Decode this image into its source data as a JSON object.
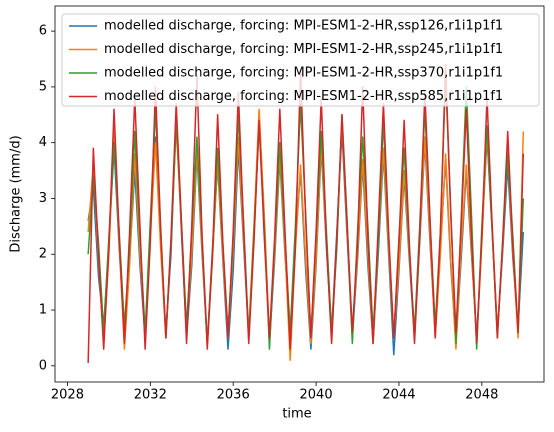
{
  "chart_data": {
    "type": "line",
    "xlabel": "time",
    "ylabel": "Discharge (mm/d)",
    "xlim": [
      2027.4,
      2051.0
    ],
    "xticks": [
      2028,
      2032,
      2036,
      2040,
      2044,
      2048
    ],
    "ylim": [
      -0.29,
      6.45
    ],
    "yticks": [
      0,
      1,
      2,
      3,
      4,
      5,
      6
    ],
    "legend": "upper right",
    "x": [
      2029,
      2029.25,
      2029.5,
      2029.75,
      2030,
      2030.25,
      2030.5,
      2030.75,
      2031,
      2031.25,
      2031.5,
      2031.75,
      2032,
      2032.25,
      2032.5,
      2032.75,
      2033,
      2033.25,
      2033.5,
      2033.75,
      2034,
      2034.25,
      2034.5,
      2034.75,
      2035,
      2035.25,
      2035.5,
      2035.75,
      2036,
      2036.25,
      2036.5,
      2036.75,
      2037,
      2037.25,
      2037.5,
      2037.75,
      2038,
      2038.25,
      2038.5,
      2038.75,
      2039,
      2039.25,
      2039.5,
      2039.75,
      2040,
      2040.25,
      2040.5,
      2040.75,
      2041,
      2041.25,
      2041.5,
      2041.75,
      2042,
      2042.25,
      2042.5,
      2042.75,
      2043,
      2043.25,
      2043.5,
      2043.75,
      2044,
      2044.25,
      2044.5,
      2044.75,
      2045,
      2045.25,
      2045.5,
      2045.75,
      2046,
      2046.25,
      2046.5,
      2046.75,
      2047,
      2047.25,
      2047.5,
      2047.75,
      2048,
      2048.25,
      2048.5,
      2048.75,
      2049,
      2049.25,
      2049.5,
      2049.75,
      2050
    ],
    "series": [
      {
        "name": "modelled discharge, forcing: MPI-ESM1-2-HR,ssp126,r1i1p1f1",
        "color": "#1f77b4",
        "values": [
          2.6,
          3.2,
          1.6,
          0.7,
          2.2,
          3.9,
          2.1,
          0.6,
          1.9,
          3.5,
          1.8,
          0.5,
          2.4,
          4.1,
          2.3,
          0.6,
          2.0,
          4.5,
          2.4,
          0.5,
          1.8,
          3.8,
          2.0,
          0.4,
          2.1,
          3.6,
          1.9,
          0.3,
          1.7,
          3.9,
          2.2,
          0.5,
          2.3,
          4.4,
          2.6,
          0.4,
          1.9,
          3.7,
          2.0,
          0.5,
          2.2,
          3.5,
          1.7,
          0.3,
          1.8,
          3.9,
          2.1,
          0.6,
          2.4,
          4.2,
          2.3,
          0.5,
          1.9,
          3.6,
          1.8,
          0.4,
          2.0,
          3.8,
          2.0,
          0.2,
          1.7,
          3.4,
          1.9,
          0.5,
          2.2,
          4.0,
          2.2,
          0.6,
          2.1,
          3.7,
          1.8,
          0.4,
          1.9,
          3.5,
          2.0,
          0.5,
          2.3,
          4.1,
          2.4,
          0.6,
          2.0,
          3.6,
          1.9,
          0.7,
          2.4
        ]
      },
      {
        "name": "modelled discharge, forcing: MPI-ESM1-2-HR,ssp245,r1i1p1f1",
        "color": "#ff7f0e",
        "values": [
          2.4,
          3.6,
          1.9,
          0.4,
          2.0,
          4.2,
          2.2,
          0.3,
          1.8,
          3.8,
          2.0,
          0.6,
          2.3,
          4.0,
          2.1,
          0.5,
          2.2,
          4.3,
          2.5,
          0.6,
          2.0,
          3.9,
          2.1,
          0.4,
          1.9,
          3.7,
          2.0,
          0.5,
          2.1,
          4.1,
          2.3,
          0.6,
          2.5,
          4.6,
          2.7,
          0.5,
          2.0,
          3.8,
          2.1,
          0.1,
          2.1,
          3.6,
          1.9,
          0.4,
          1.9,
          4.0,
          2.2,
          0.5,
          2.2,
          4.4,
          2.4,
          0.6,
          2.0,
          3.7,
          2.0,
          0.4,
          2.2,
          3.9,
          2.1,
          0.5,
          1.8,
          3.5,
          2.0,
          0.6,
          2.3,
          4.1,
          2.3,
          0.5,
          2.0,
          3.8,
          1.9,
          0.3,
          2.1,
          3.6,
          2.1,
          0.4,
          2.2,
          4.2,
          2.5,
          0.6,
          2.1,
          3.9,
          2.0,
          0.5,
          4.2
        ]
      },
      {
        "name": "modelled discharge, forcing: MPI-ESM1-2-HR,ssp370,r1i1p1f1",
        "color": "#2ca02c",
        "values": [
          2.0,
          3.4,
          2.2,
          0.6,
          2.3,
          4.0,
          2.4,
          0.7,
          2.1,
          4.2,
          2.3,
          0.6,
          2.6,
          4.6,
          2.5,
          0.5,
          2.2,
          4.4,
          2.6,
          0.7,
          2.4,
          4.1,
          2.3,
          0.4,
          2.0,
          3.9,
          2.2,
          0.6,
          2.3,
          4.5,
          2.6,
          0.5,
          2.4,
          4.3,
          2.5,
          0.3,
          2.2,
          4.0,
          2.3,
          0.6,
          2.5,
          4.7,
          2.7,
          0.5,
          2.3,
          4.2,
          2.4,
          0.6,
          2.1,
          4.5,
          2.6,
          0.4,
          2.4,
          4.1,
          2.5,
          0.6,
          2.2,
          4.4,
          2.3,
          0.5,
          2.3,
          3.9,
          2.1,
          0.6,
          2.5,
          4.6,
          2.6,
          0.7,
          2.4,
          5.2,
          2.8,
          0.4,
          2.6,
          5.0,
          2.7,
          0.3,
          2.5,
          4.3,
          2.4,
          0.5,
          2.2,
          3.8,
          2.3,
          0.6,
          3.0
        ]
      },
      {
        "name": "modelled discharge, forcing: MPI-ESM1-2-HR,ssp585,r1i1p1f1",
        "color": "#d62728",
        "values": [
          0.05,
          3.9,
          2.0,
          0.3,
          2.1,
          4.6,
          2.3,
          0.4,
          2.4,
          4.8,
          2.5,
          0.3,
          2.2,
          5.0,
          2.4,
          0.5,
          2.3,
          4.7,
          2.6,
          0.4,
          2.5,
          5.2,
          2.3,
          0.3,
          2.0,
          4.5,
          2.2,
          0.5,
          2.4,
          4.9,
          2.5,
          0.4,
          2.2,
          4.4,
          2.3,
          0.5,
          2.3,
          4.6,
          2.4,
          0.3,
          2.1,
          5.3,
          2.6,
          0.5,
          2.4,
          4.8,
          2.2,
          0.4,
          2.3,
          4.5,
          2.5,
          0.6,
          2.2,
          5.0,
          2.3,
          0.4,
          2.5,
          4.7,
          2.4,
          0.5,
          2.2,
          4.4,
          2.2,
          0.4,
          2.3,
          4.9,
          2.6,
          0.5,
          2.4,
          5.4,
          2.7,
          0.6,
          2.5,
          4.6,
          2.3,
          0.4,
          2.3,
          4.8,
          2.5,
          0.5,
          2.2,
          4.2,
          2.1,
          0.6,
          3.8
        ]
      }
    ]
  }
}
